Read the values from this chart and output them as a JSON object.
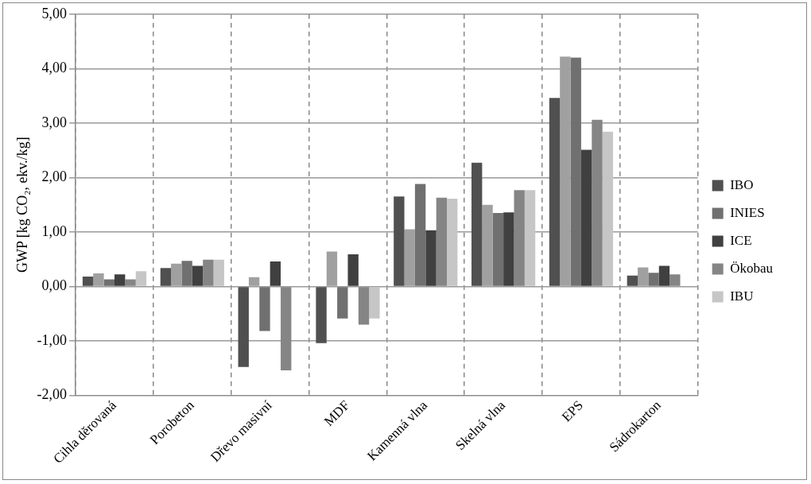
{
  "chart_data": {
    "type": "bar",
    "ylabel": "GWP [kg CO₂, ekv./kg]",
    "categories": [
      "Cihla děrovaná",
      "Porobeton",
      "Dřevo masivní",
      "MDF",
      "Kamenná vlna",
      "Skelná vlna",
      "EPS",
      "Sádrokarton"
    ],
    "series": [
      {
        "name": "IBO",
        "color": "#505050",
        "values": [
          0.18,
          0.34,
          -1.48,
          -1.04,
          1.65,
          2.27,
          3.46,
          0.2
        ]
      },
      {
        "color": "#a0a0a0",
        "values": [
          0.24,
          0.42,
          0.17,
          0.64,
          1.05,
          1.5,
          4.22,
          0.35
        ]
      },
      {
        "name": "INIES",
        "color": "#707070",
        "values": [
          0.13,
          0.47,
          -0.82,
          -0.59,
          1.88,
          1.35,
          4.2,
          0.25
        ]
      },
      {
        "name": "ICE",
        "color": "#404040",
        "values": [
          0.22,
          0.38,
          0.46,
          0.59,
          1.03,
          1.36,
          2.51,
          0.38
        ]
      },
      {
        "name": "Ökobau",
        "color": "#858585",
        "values": [
          0.13,
          0.49,
          -1.54,
          -0.7,
          1.63,
          1.77,
          3.06,
          0.22
        ]
      },
      {
        "name": "IBU",
        "color": "#c6c6c6",
        "values": [
          0.28,
          0.49,
          null,
          -0.59,
          1.61,
          1.77,
          2.84,
          null
        ]
      }
    ],
    "ylim": [
      -2,
      5
    ],
    "yticks": [
      {
        "value": -2,
        "label": "-2,00"
      },
      {
        "value": -1,
        "label": "-1,00"
      },
      {
        "value": 0,
        "label": "0,00"
      },
      {
        "value": 1,
        "label": "1,00"
      },
      {
        "value": 2,
        "label": "2,00"
      },
      {
        "value": 3,
        "label": "3,00"
      },
      {
        "value": 4,
        "label": "4,00"
      },
      {
        "value": 5,
        "label": "5,00"
      }
    ],
    "grid": true,
    "legend": "right"
  }
}
